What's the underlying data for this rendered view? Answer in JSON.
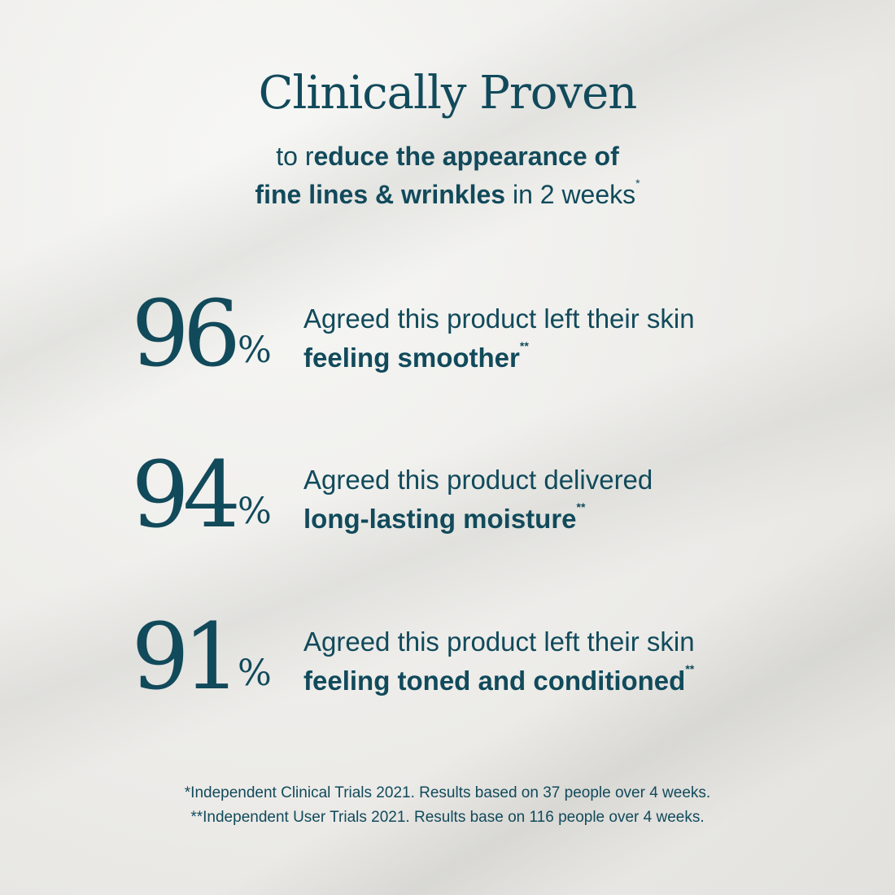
{
  "title": "Clinically Proven",
  "subtitle": {
    "line1_regular": "to r",
    "line1_bold": "educe the appearance of",
    "line2_bold": "fine lines & wrinkles",
    "line2_regular": " in 2 weeks",
    "line2_mark": "*"
  },
  "stats": [
    {
      "value": "96",
      "unit": "%",
      "line1": "Agreed this product left their skin",
      "line2": "feeling smoother",
      "mark": "**"
    },
    {
      "value": "94",
      "unit": "%",
      "line1": "Agreed this product delivered",
      "line2": "long-lasting moisture",
      "mark": "**"
    },
    {
      "value": "91",
      "unit": "%",
      "line1": "Agreed this product left their skin",
      "line2": "feeling toned and conditioned",
      "mark": "**"
    }
  ],
  "footnotes": [
    "*Independent Clinical Trials 2021. Results based on 37 people over 4 weeks.",
    "**Independent User Trials 2021. Results base on 116 people over 4 weeks."
  ],
  "colors": {
    "text": "#114a5b",
    "background": "#eeeeec"
  }
}
